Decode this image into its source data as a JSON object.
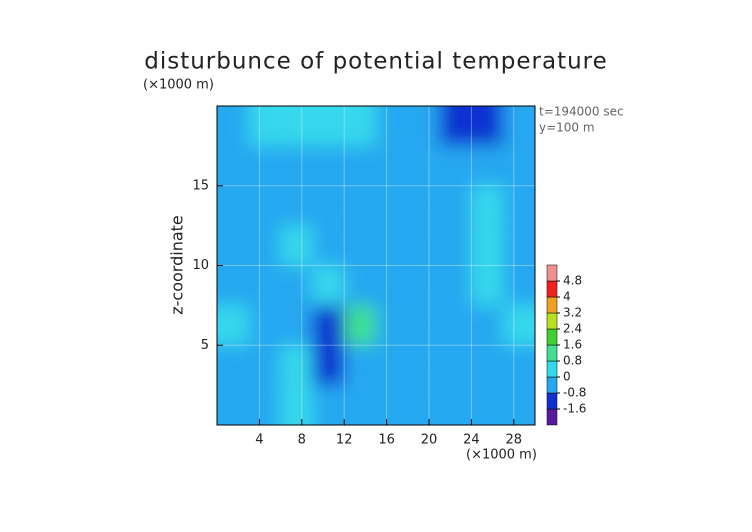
{
  "chart_data": {
    "type": "contour",
    "title": "disturbunce of potential temperature",
    "y_unit": "(×1000 m)",
    "x_unit": "(×1000 m)",
    "ylabel": "z-coordinate",
    "annotations": [
      "t=194000 sec",
      "y=100 m"
    ],
    "xlim": [
      0,
      30
    ],
    "ylim": [
      0,
      20
    ],
    "xticks": [
      4,
      8,
      12,
      16,
      20,
      24,
      28
    ],
    "yticks": [
      5,
      10,
      15
    ],
    "x": [
      1.5,
      4.5,
      7.5,
      10.5,
      13.5,
      16.5,
      19.5,
      22.5,
      25.5,
      28.5
    ],
    "y": [
      18.75,
      16.25,
      13.75,
      11.25,
      8.75,
      6.25,
      3.75,
      1.25
    ],
    "z": [
      [
        -0.3,
        0.1,
        0.3,
        0.3,
        0.2,
        -0.2,
        -0.5,
        -1.2,
        -1.4,
        -0.4
      ],
      [
        -0.5,
        -0.2,
        -0.3,
        -0.1,
        -0.4,
        -0.3,
        -0.2,
        -0.3,
        -0.1,
        -0.3
      ],
      [
        -0.6,
        -0.2,
        -0.1,
        -0.1,
        -0.3,
        -0.1,
        -0.2,
        -0.2,
        0.0,
        -0.4
      ],
      [
        -0.3,
        -0.1,
        0.1,
        -0.2,
        -0.2,
        -0.1,
        -0.3,
        -0.5,
        0.0,
        -0.2
      ],
      [
        -0.3,
        -0.1,
        -0.3,
        0.1,
        -0.1,
        -0.2,
        -0.4,
        -0.2,
        0.1,
        -0.2
      ],
      [
        0.4,
        -0.2,
        -0.4,
        -1.0,
        0.9,
        -0.2,
        -0.3,
        -0.5,
        -0.2,
        0.2
      ],
      [
        -0.5,
        -0.4,
        0.3,
        -0.9,
        -0.1,
        -0.3,
        -0.5,
        -0.2,
        -0.3,
        -0.5
      ],
      [
        -0.4,
        -0.3,
        0.3,
        -0.3,
        -0.2,
        -0.3,
        -0.2,
        -0.3,
        -0.6,
        -0.3
      ]
    ],
    "levels": [
      -1.6,
      -0.8,
      0,
      0.8,
      1.6,
      2.4,
      3.2,
      4,
      4.8
    ],
    "colors": [
      "#5a1aa0",
      "#1030d0",
      "#26a8f0",
      "#34d8ec",
      "#40e090",
      "#40d030",
      "#b8e020",
      "#f0a020",
      "#f02020",
      "#f09090"
    ]
  }
}
